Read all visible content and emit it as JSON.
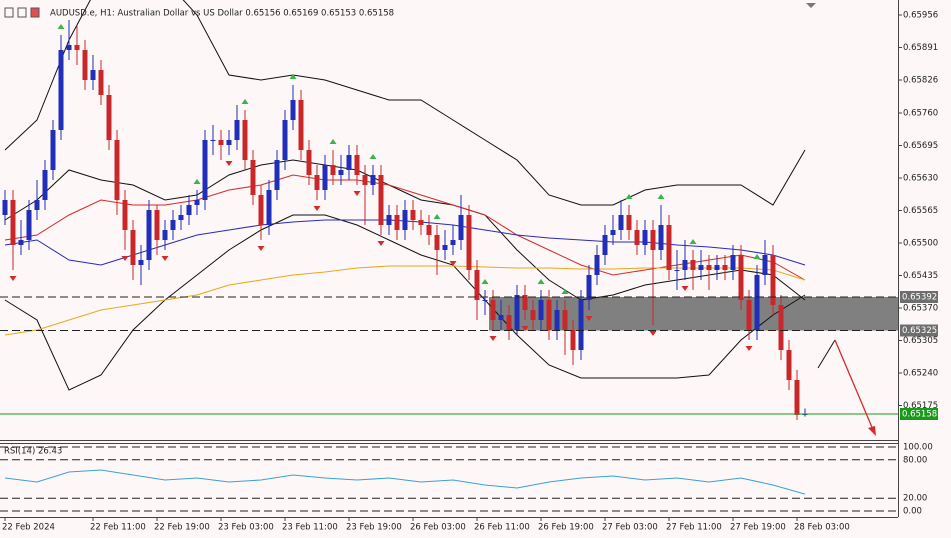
{
  "chart_data": [
    {
      "type": "candlestick",
      "title": "AUDUSD.e, H1:  Australian Dollar vs US Dollar  0.65156 0.65169 0.65153 0.65158",
      "up_color": "#1f2fb8",
      "down_color": "#c8282a",
      "xlim": [
        -0.625,
        111.625
      ],
      "ylim": [
        0.65106,
        0.65986
      ],
      "yticks": [
        0.65956,
        0.65891,
        0.65826,
        {
          "value": 0.6576,
          "label": "0.65760"
        },
        0.65695,
        {
          "value": 0.6563,
          "label": "0.65630"
        },
        0.65565,
        {
          "value": 0.655,
          "label": "0.65500"
        },
        0.65435,
        {
          "value": 0.6537,
          "label": "0.65370"
        },
        0.65305,
        {
          "value": 0.6524,
          "label": "0.65240"
        },
        0.65175
      ],
      "open": [
        0.65556,
        0.65586,
        0.65496,
        0.65506,
        0.65566,
        0.65586,
        0.65646,
        0.65726,
        0.65886,
        0.65896,
        0.65886,
        0.65826,
        0.65846,
        0.65796,
        0.65706,
        0.65586,
        0.65526,
        0.65456,
        0.65466,
        0.65566,
        0.65506,
        0.65526,
        0.65546,
        0.65556,
        0.65576,
        0.65586,
        0.65706,
        0.65706,
        0.65696,
        0.65706,
        0.65746,
        0.65666,
        0.65596,
        0.65536,
        0.65606,
        0.65666,
        0.65746,
        0.65786,
        0.65686,
        0.65636,
        0.65606,
        0.65656,
        0.65636,
        0.65646,
        0.65676,
        0.65636,
        0.65616,
        0.65636,
        0.65536,
        0.65556,
        0.65526,
        0.65566,
        0.65546,
        0.65536,
        0.65516,
        0.65486,
        0.65496,
        0.65506,
        0.65556,
        0.65446,
        0.65386,
        0.65386,
        0.65346,
        0.65356,
        0.65326,
        0.65396,
        0.65366,
        0.65346,
        0.65386,
        0.65326,
        0.65366,
        0.65326,
        0.65286,
        0.65386,
        0.65436,
        0.65476,
        0.65516,
        0.65526,
        0.65556,
        0.65526,
        0.65496,
        0.65526,
        0.65486,
        0.65536,
        0.65446,
        0.65446,
        0.65466,
        0.65446,
        0.65456,
        0.65446,
        0.65456,
        0.65446,
        0.65476,
        0.65386,
        0.65326,
        0.65436,
        0.65476,
        0.65376,
        0.65286,
        0.65226,
        0.65156
      ],
      "high": [
        0.65606,
        0.65606,
        0.65546,
        0.65586,
        0.65626,
        0.65666,
        0.65746,
        0.65916,
        0.65946,
        0.65936,
        0.65906,
        0.65876,
        0.65866,
        0.65816,
        0.65726,
        0.65606,
        0.65546,
        0.65496,
        0.65586,
        0.65576,
        0.65546,
        0.65566,
        0.65576,
        0.65596,
        0.65606,
        0.65726,
        0.65736,
        0.65726,
        0.65726,
        0.65776,
        0.65766,
        0.65686,
        0.65616,
        0.65626,
        0.65686,
        0.65766,
        0.65816,
        0.65806,
        0.65706,
        0.65656,
        0.65676,
        0.65686,
        0.65676,
        0.65696,
        0.65696,
        0.65656,
        0.65656,
        0.65656,
        0.65576,
        0.65576,
        0.65586,
        0.65586,
        0.65566,
        0.65556,
        0.65536,
        0.65526,
        0.65536,
        0.65596,
        0.65576,
        0.65466,
        0.65406,
        0.65406,
        0.65386,
        0.65376,
        0.65416,
        0.65416,
        0.65386,
        0.65406,
        0.65406,
        0.65386,
        0.65386,
        0.65346,
        0.65406,
        0.65456,
        0.65496,
        0.65536,
        0.65556,
        0.65586,
        0.65576,
        0.65546,
        0.65546,
        0.65546,
        0.65576,
        0.65556,
        0.65486,
        0.65506,
        0.65486,
        0.65486,
        0.65476,
        0.65476,
        0.65476,
        0.65496,
        0.65496,
        0.65406,
        0.65456,
        0.65506,
        0.65496,
        0.65396,
        0.65306,
        0.65246,
        0.65169
      ],
      "low": [
        0.65536,
        0.65446,
        0.65476,
        0.65486,
        0.65546,
        0.65566,
        0.65626,
        0.65706,
        0.65866,
        0.65856,
        0.65806,
        0.65806,
        0.65776,
        0.65686,
        0.65556,
        0.65486,
        0.65426,
        0.65416,
        0.65446,
        0.65476,
        0.65486,
        0.65506,
        0.65526,
        0.65536,
        0.65556,
        0.65566,
        0.65676,
        0.65666,
        0.65676,
        0.65686,
        0.65646,
        0.65576,
        0.65506,
        0.65516,
        0.65586,
        0.65646,
        0.65726,
        0.65666,
        0.65616,
        0.65586,
        0.65586,
        0.65616,
        0.65616,
        0.65626,
        0.65616,
        0.65536,
        0.65596,
        0.65516,
        0.65516,
        0.65506,
        0.65506,
        0.65526,
        0.65516,
        0.65496,
        0.65436,
        0.65466,
        0.65476,
        0.65486,
        0.65426,
        0.65346,
        0.65356,
        0.65326,
        0.65326,
        0.65306,
        0.65316,
        0.65346,
        0.65326,
        0.65326,
        0.65306,
        0.65306,
        0.65276,
        0.65256,
        0.65266,
        0.65366,
        0.65416,
        0.65456,
        0.65496,
        0.65506,
        0.65506,
        0.65476,
        0.65476,
        0.65336,
        0.65466,
        0.65426,
        0.65406,
        0.65426,
        0.65406,
        0.65426,
        0.65406,
        0.65426,
        0.65426,
        0.65426,
        0.65366,
        0.65306,
        0.65306,
        0.65416,
        0.65356,
        0.65266,
        0.65206,
        0.65146,
        0.65153
      ],
      "close": [
        0.65586,
        0.65496,
        0.65506,
        0.65566,
        0.65586,
        0.65646,
        0.65726,
        0.65886,
        0.65896,
        0.65886,
        0.65826,
        0.65846,
        0.65796,
        0.65706,
        0.65586,
        0.65526,
        0.65456,
        0.65466,
        0.65566,
        0.65506,
        0.65526,
        0.65546,
        0.65556,
        0.65576,
        0.65586,
        0.65706,
        0.65706,
        0.65696,
        0.65706,
        0.65746,
        0.65666,
        0.65596,
        0.65536,
        0.65606,
        0.65666,
        0.65746,
        0.65786,
        0.65686,
        0.65636,
        0.65606,
        0.65656,
        0.65636,
        0.65646,
        0.65676,
        0.65636,
        0.65616,
        0.65636,
        0.65536,
        0.65556,
        0.65526,
        0.65566,
        0.65546,
        0.65536,
        0.65516,
        0.65486,
        0.65496,
        0.65506,
        0.65556,
        0.65446,
        0.65386,
        0.65386,
        0.65346,
        0.65356,
        0.65326,
        0.65396,
        0.65366,
        0.65346,
        0.65386,
        0.65326,
        0.65366,
        0.65326,
        0.65286,
        0.65386,
        0.65436,
        0.65476,
        0.65516,
        0.65526,
        0.65556,
        0.65526,
        0.65496,
        0.65526,
        0.65486,
        0.65536,
        0.65446,
        0.65446,
        0.65466,
        0.65446,
        0.65456,
        0.65446,
        0.65456,
        0.65446,
        0.65476,
        0.65386,
        0.65326,
        0.65436,
        0.65476,
        0.65376,
        0.65286,
        0.65226,
        0.65156,
        0.65158
      ],
      "indicators": {
        "x": [
          0,
          4,
          8,
          12,
          16,
          20,
          24,
          28,
          32,
          36,
          40,
          44,
          48,
          52,
          56,
          60,
          64,
          68,
          72,
          76,
          80,
          84,
          88,
          92,
          96,
          100
        ],
        "series": [
          {
            "color": "#111111",
            "values": [
              0.65686,
              0.65746,
              0.65906,
              0.66026,
              0.66066,
              0.66026,
              0.65956,
              0.65836,
              0.65826,
              0.65836,
              0.65826,
              0.65806,
              0.65786,
              0.65786,
              0.65746,
              0.65706,
              0.65666,
              0.65596,
              0.65576,
              0.65576,
              0.65606,
              0.65616,
              0.65616,
              0.65616,
              0.65576,
              0.65686
            ]
          },
          {
            "color": "#111111",
            "values": [
              0.65386,
              0.65346,
              0.65206,
              0.65236,
              0.65326,
              0.65386,
              0.65436,
              0.65486,
              0.65526,
              0.65556,
              0.65556,
              0.65536,
              0.65506,
              0.65476,
              0.65456,
              0.65386,
              0.65316,
              0.65256,
              0.6523,
              0.6523,
              0.6523,
              0.6523,
              0.65236,
              0.65306,
              0.65356,
              0.65396
            ]
          },
          {
            "color": "#111111",
            "values": [
              0.65546,
              0.65586,
              0.65646,
              0.65626,
              0.65616,
              0.65586,
              0.65596,
              0.65636,
              0.65656,
              0.65666,
              0.65656,
              0.65646,
              0.65616,
              0.65586,
              0.65576,
              0.65556,
              0.65486,
              0.65426,
              0.65386,
              0.65396,
              0.65416,
              0.65426,
              0.65436,
              0.65446,
              0.65436,
              0.65386
            ]
          },
          {
            "color": "#d42a2a",
            "values": [
              0.65506,
              0.65516,
              0.65556,
              0.65586,
              0.65576,
              0.65576,
              0.65586,
              0.65606,
              0.65616,
              0.65636,
              0.65626,
              0.65626,
              0.65616,
              0.65596,
              0.65576,
              0.65556,
              0.65516,
              0.65486,
              0.65456,
              0.65436,
              0.65446,
              0.65456,
              0.65466,
              0.65476,
              0.65462,
              0.65426
            ]
          },
          {
            "color": "#2a2ab8",
            "values": [
              0.65496,
              0.65506,
              0.65466,
              0.65456,
              0.65476,
              0.65496,
              0.65516,
              0.65526,
              0.65536,
              0.65542,
              0.65546,
              0.65546,
              0.65546,
              0.65542,
              0.65536,
              0.65526,
              0.65516,
              0.6551,
              0.65506,
              0.65502,
              0.65502,
              0.65496,
              0.65492,
              0.65486,
              0.65476,
              0.65456
            ]
          },
          {
            "color": "#e8a820",
            "values": [
              0.65316,
              0.65326,
              0.65346,
              0.65366,
              0.65376,
              0.65386,
              0.65396,
              0.65416,
              0.65426,
              0.65436,
              0.65442,
              0.6545,
              0.65454,
              0.65454,
              0.65454,
              0.65452,
              0.6545,
              0.6545,
              0.65448,
              0.65448,
              0.6545,
              0.6545,
              0.6545,
              0.6545,
              0.65446,
              0.65426
            ]
          }
        ]
      },
      "zone": {
        "x": 60.5,
        "low": 0.65325,
        "high": 0.65392,
        "color": "#808080"
      },
      "levels": [
        {
          "value": 0.65392,
          "color": "#222222",
          "dashed": true,
          "label_color": "#6e6e6e"
        },
        {
          "value": 0.65325,
          "color": "#222222",
          "dashed": true,
          "label_color": "#6e6e6e"
        },
        {
          "value": 0.65158,
          "color": "#1a9a1a",
          "dashed": false,
          "label_color": "#1a9a1a"
        }
      ],
      "fractals_up": [
        7,
        24,
        30,
        36,
        41,
        46,
        54,
        60,
        67,
        70,
        78,
        82,
        86,
        94
      ],
      "fractals_down": [
        1,
        15,
        20,
        28,
        32,
        39,
        44,
        47,
        56,
        61,
        65,
        73,
        81,
        85,
        93
      ],
      "fractal_up_color": "#3cb44b",
      "fractal_down_color": "#d42a2a"
    },
    {
      "type": "line",
      "title": "RSI(14) 26.43",
      "x": [
        0,
        4,
        8,
        12,
        16,
        20,
        24,
        28,
        32,
        36,
        40,
        44,
        48,
        52,
        56,
        60,
        64,
        68,
        72,
        76,
        80,
        84,
        88,
        92,
        96,
        100
      ],
      "series": [
        {
          "color": "#3ba0d8",
          "values": [
            51.6,
            45.3,
            60.9,
            64.1,
            56.3,
            48.4,
            51.6,
            45.3,
            48.4,
            56.3,
            51.6,
            48.4,
            51.6,
            45.3,
            48.4,
            40.6,
            35.9,
            45.3,
            51.6,
            54.7,
            48.4,
            51.6,
            45.3,
            51.6,
            40.6,
            26.43
          ]
        }
      ],
      "xlim": [
        -0.625,
        111.625
      ],
      "ylim": [
        -9.375,
        106.25
      ],
      "yticks": [
        {
          "value": 100,
          "label": "100.00"
        },
        {
          "value": 80,
          "label": "80.00"
        },
        {
          "value": 20,
          "label": "20.00"
        },
        {
          "value": 0,
          "label": "0.00"
        }
      ],
      "xticks": [
        {
          "value": 0,
          "label": "22 Feb 2024"
        },
        {
          "value": 11,
          "label": "22 Feb 11:00"
        },
        {
          "value": 19,
          "label": "22 Feb 19:00"
        },
        {
          "value": 27,
          "label": "23 Feb 03:00"
        },
        {
          "value": 35,
          "label": "23 Feb 11:00"
        },
        {
          "value": 43,
          "label": "23 Feb 19:00"
        },
        {
          "value": 51,
          "label": "26 Feb 03:00"
        },
        {
          "value": 59,
          "label": "26 Feb 11:00"
        },
        {
          "value": 67,
          "label": "26 Feb 19:00"
        },
        {
          "value": 75,
          "label": "27 Feb 03:00"
        },
        {
          "value": 83,
          "label": "27 Feb 11:00"
        },
        {
          "value": 91,
          "label": "27 Feb 19:00"
        },
        {
          "value": 99,
          "label": "28 Feb 03:00"
        }
      ],
      "grid_dashed": true
    }
  ]
}
